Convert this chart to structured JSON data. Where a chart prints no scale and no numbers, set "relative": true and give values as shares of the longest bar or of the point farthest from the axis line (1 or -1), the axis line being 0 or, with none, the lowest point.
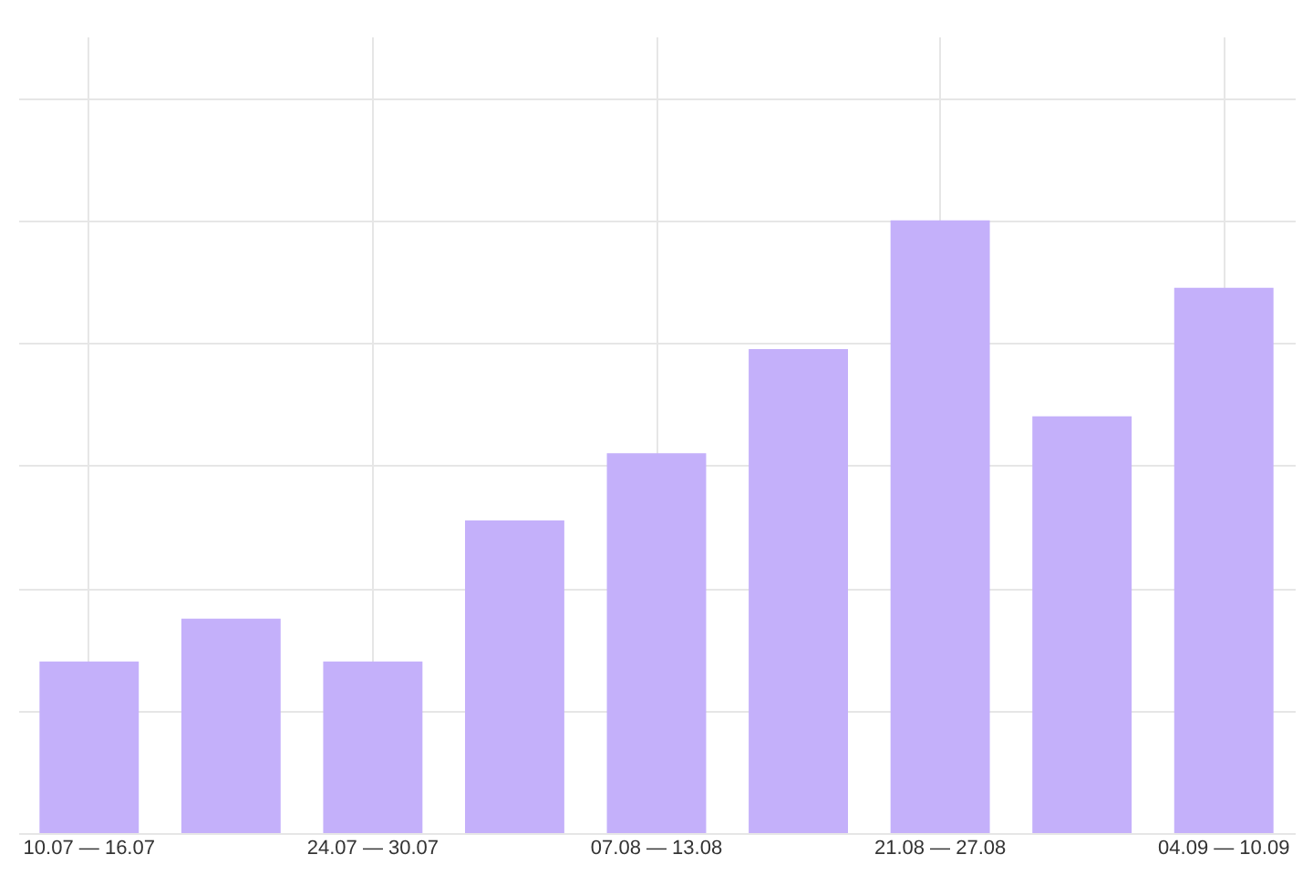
{
  "chart_data": {
    "type": "bar",
    "relative": true,
    "grid": true,
    "categories": [
      "10.07 — 16.07",
      null,
      "24.07 — 30.07",
      null,
      "07.08 — 13.08",
      null,
      "21.08 — 27.08",
      null,
      "04.09 — 10.09"
    ],
    "values": [
      0.28,
      0.35,
      0.28,
      0.51,
      0.62,
      0.79,
      1,
      0.68,
      0.89
    ],
    "color": "#c4b0fa"
  }
}
